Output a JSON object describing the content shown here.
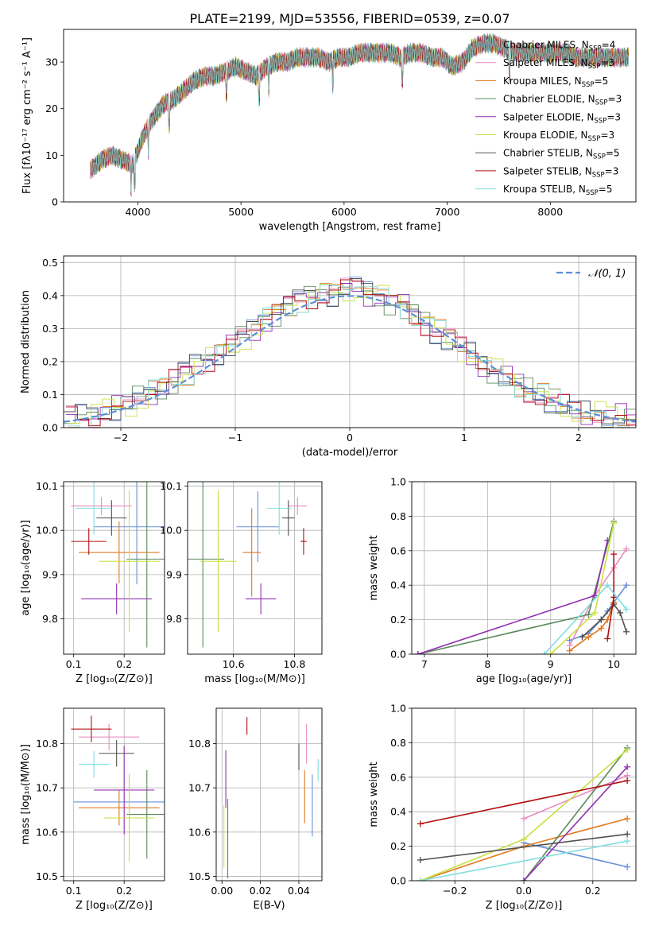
{
  "figure_title": "PLATE=2199, MJD=53556, FIBERID=0539, z=0.07",
  "colors": {
    "chabrier_miles": "#6a8fd8",
    "salpeter_miles": "#e88cc0",
    "kroupa_miles": "#e07a20",
    "chabrier_elodie": "#5a8a5a",
    "salpeter_elodie": "#9030b0",
    "kroupa_elodie": "#c8e040",
    "chabrier_stelib": "#505050",
    "salpeter_stelib": "#b01010",
    "kroupa_stelib": "#80dde0"
  },
  "chart_data": [
    {
      "id": "spectrum",
      "type": "line",
      "title": "PLATE=2199, MJD=53556, FIBERID=0539, z=0.07",
      "xlabel": "wavelength [Angstrom, rest frame]",
      "ylabel": "Flux [fλ10⁻¹⁷ erg cm⁻² s⁻¹ A⁻¹]",
      "xlim": [
        3280,
        8830
      ],
      "ylim": [
        0,
        37
      ],
      "xticks": [
        4000,
        5000,
        6000,
        7000,
        8000
      ],
      "yticks": [
        0,
        10,
        20,
        30
      ],
      "legend_position": "right",
      "x": [
        3550,
        3650,
        3750,
        3850,
        3950,
        4050,
        4150,
        4250,
        4350,
        4450,
        4550,
        4650,
        4750,
        4850,
        4950,
        5050,
        5150,
        5250,
        5350,
        5450,
        5550,
        5650,
        5750,
        5850,
        5950,
        6050,
        6150,
        6250,
        6350,
        6450,
        6550,
        6650,
        6750,
        6850,
        6950,
        7050,
        7150,
        7250,
        7350,
        7450,
        7550,
        7650,
        7750,
        7850,
        7950,
        8050,
        8150,
        8250,
        8350,
        8450,
        8550,
        8650,
        8750
      ],
      "y": [
        7,
        9,
        10,
        9,
        8,
        14,
        18,
        21,
        22,
        24,
        26,
        27,
        27,
        28,
        29,
        28,
        27,
        29,
        30,
        30,
        31,
        31,
        31,
        30,
        31,
        31,
        32,
        32,
        32,
        32,
        31,
        32,
        32,
        31,
        31,
        29,
        30,
        33,
        34,
        34,
        33,
        32,
        32,
        32,
        32,
        32,
        32,
        31,
        31,
        31,
        31,
        31,
        31
      ],
      "series": [
        {
          "name": "Chabrier MILES, N_SSP=4",
          "label_main": "Chabrier MILES, N",
          "label_sub": "SSP",
          "label_end": "=4",
          "color": "#6a8fd8"
        },
        {
          "name": "Salpeter MILES, N_SSP=3",
          "label_main": "Salpeter MILES, N",
          "label_sub": "SSP",
          "label_end": "=3",
          "color": "#e88cc0"
        },
        {
          "name": "Kroupa MILES, N_SSP=5",
          "label_main": "Kroupa MILES, N",
          "label_sub": "SSP",
          "label_end": "=5",
          "color": "#e07a20"
        },
        {
          "name": "Chabrier ELODIE, N_SSP=3",
          "label_main": "Chabrier ELODIE, N",
          "label_sub": "SSP",
          "label_end": "=3",
          "color": "#5a8a5a"
        },
        {
          "name": "Salpeter ELODIE, N_SSP=3",
          "label_main": "Salpeter ELODIE, N",
          "label_sub": "SSP",
          "label_end": "=3",
          "color": "#9030b0"
        },
        {
          "name": "Kroupa ELODIE, N_SSP=3",
          "label_main": "Kroupa ELODIE, N",
          "label_sub": "SSP",
          "label_end": "=3",
          "color": "#c8e040"
        },
        {
          "name": "Chabrier STELIB, N_SSP=5",
          "label_main": "Chabrier STELIB, N",
          "label_sub": "SSP",
          "label_end": "=5",
          "color": "#505050"
        },
        {
          "name": "Salpeter STELIB, N_SSP=3",
          "label_main": "Salpeter STELIB, N",
          "label_sub": "SSP",
          "label_end": "=3",
          "color": "#b01010"
        },
        {
          "name": "Kroupa STELIB, N_SSP=5",
          "label_main": "Kroupa STELIB, N",
          "label_sub": "SSP",
          "label_end": "=5",
          "color": "#80dde0"
        }
      ]
    },
    {
      "id": "residuals",
      "type": "bar",
      "xlabel": "(data-model)/error",
      "ylabel": "Normed distribution",
      "xlim": [
        -2.5,
        2.5
      ],
      "ylim": [
        0,
        0.52
      ],
      "xticks": [
        -2,
        -1,
        0,
        1,
        2
      ],
      "yticks": [
        0.0,
        0.1,
        0.2,
        0.3,
        0.4,
        0.5
      ],
      "grid": true,
      "legend_label": "𝒩(0, 1)",
      "bin_width": 0.1,
      "x": [
        -2.45,
        -2.35,
        -2.25,
        -2.15,
        -2.05,
        -1.95,
        -1.85,
        -1.75,
        -1.65,
        -1.55,
        -1.45,
        -1.35,
        -1.25,
        -1.15,
        -1.05,
        -0.95,
        -0.85,
        -0.75,
        -0.65,
        -0.55,
        -0.45,
        -0.35,
        -0.25,
        -0.15,
        -0.05,
        0.05,
        0.15,
        0.25,
        0.35,
        0.45,
        0.55,
        0.65,
        0.75,
        0.85,
        0.95,
        1.05,
        1.15,
        1.25,
        1.35,
        1.45,
        1.55,
        1.65,
        1.75,
        1.85,
        1.95,
        2.05,
        2.15,
        2.25,
        2.35,
        2.45
      ],
      "y": [
        0.03,
        0.03,
        0.04,
        0.05,
        0.06,
        0.07,
        0.09,
        0.11,
        0.12,
        0.14,
        0.17,
        0.19,
        0.21,
        0.23,
        0.25,
        0.28,
        0.3,
        0.33,
        0.35,
        0.37,
        0.39,
        0.4,
        0.41,
        0.41,
        0.42,
        0.43,
        0.41,
        0.4,
        0.38,
        0.37,
        0.34,
        0.32,
        0.29,
        0.27,
        0.24,
        0.22,
        0.19,
        0.17,
        0.15,
        0.13,
        0.11,
        0.1,
        0.08,
        0.06,
        0.05,
        0.04,
        0.04,
        0.03,
        0.03,
        0.02
      ]
    },
    {
      "id": "age_vs_Z",
      "type": "scatter",
      "xlabel": "Z [log₁₀(Z/Z⊙)]",
      "ylabel": "age  [log₁₀(age/yr)]",
      "xlim": [
        0.08,
        0.28
      ],
      "ylim": [
        9.72,
        10.11
      ],
      "xticks": [
        0.1,
        0.2
      ],
      "yticks": [
        9.8,
        9.9,
        10.0,
        10.1
      ],
      "grid": true,
      "points": [
        {
          "series": "Chabrier MILES",
          "x": 0.225,
          "y": 10.008,
          "xerr": 0.085,
          "yerr": 0.13
        },
        {
          "series": "Salpeter MILES",
          "x": 0.155,
          "y": 10.055,
          "xerr": 0.06,
          "yerr": 0.02
        },
        {
          "series": "Kroupa MILES",
          "x": 0.19,
          "y": 9.95,
          "xerr": 0.08,
          "yerr": 0.07
        },
        {
          "series": "Chabrier ELODIE",
          "x": 0.245,
          "y": 9.935,
          "xerr": 0.04,
          "yerr": 0.2
        },
        {
          "series": "Salpeter ELODIE",
          "x": 0.185,
          "y": 9.845,
          "xerr": 0.07,
          "yerr": 0.035
        },
        {
          "series": "Kroupa ELODIE",
          "x": 0.21,
          "y": 9.93,
          "xerr": 0.06,
          "yerr": 0.16
        },
        {
          "series": "Chabrier STELIB",
          "x": 0.175,
          "y": 10.028,
          "xerr": 0.03,
          "yerr": 0.04
        },
        {
          "series": "Salpeter STELIB",
          "x": 0.13,
          "y": 9.975,
          "xerr": 0.035,
          "yerr": 0.03
        },
        {
          "series": "Kroupa STELIB",
          "x": 0.14,
          "y": 10.05,
          "xerr": 0.035,
          "yerr": 0.06
        }
      ]
    },
    {
      "id": "age_vs_mass",
      "type": "scatter",
      "xlabel": "mass [log₁₀(M/M⊙)]",
      "xlim": [
        10.45,
        10.89
      ],
      "ylim": [
        9.72,
        10.11
      ],
      "xticks": [
        10.6,
        10.8
      ],
      "yticks": [
        9.8,
        9.9,
        10.0,
        10.1
      ],
      "grid": true,
      "points": [
        {
          "series": "Chabrier MILES",
          "x": 10.68,
          "y": 10.008,
          "xerr": 0.07,
          "yerr": 0.08
        },
        {
          "series": "Salpeter MILES",
          "x": 10.81,
          "y": 10.055,
          "xerr": 0.03,
          "yerr": 0.02
        },
        {
          "series": "Kroupa MILES",
          "x": 10.66,
          "y": 9.95,
          "xerr": 0.03,
          "yerr": 0.1
        },
        {
          "series": "Chabrier ELODIE",
          "x": 10.5,
          "y": 9.935,
          "xerr": 0.07,
          "yerr": 0.2
        },
        {
          "series": "Salpeter ELODIE",
          "x": 10.69,
          "y": 9.845,
          "xerr": 0.05,
          "yerr": 0.035
        },
        {
          "series": "Kroupa ELODIE",
          "x": 10.55,
          "y": 9.93,
          "xerr": 0.06,
          "yerr": 0.16
        },
        {
          "series": "Chabrier STELIB",
          "x": 10.78,
          "y": 10.028,
          "xerr": 0.02,
          "yerr": 0.04
        },
        {
          "series": "Salpeter STELIB",
          "x": 10.83,
          "y": 9.975,
          "xerr": 0.01,
          "yerr": 0.03
        },
        {
          "series": "Kroupa STELIB",
          "x": 10.75,
          "y": 10.05,
          "xerr": 0.04,
          "yerr": 0.06
        }
      ]
    },
    {
      "id": "weight_vs_age",
      "type": "line",
      "xlabel": "age  [log₁₀(age/yr)]",
      "ylabel": "mass weight",
      "xlim": [
        6.8,
        10.35
      ],
      "ylim": [
        0,
        1.0
      ],
      "xticks": [
        7,
        8,
        9,
        10
      ],
      "yticks": [
        0.0,
        0.2,
        0.4,
        0.6,
        0.8,
        1.0
      ],
      "grid": true,
      "series": [
        {
          "name": "Chabrier MILES",
          "x": [
            9.3,
            9.6,
            9.8,
            9.9,
            10.0,
            10.2
          ],
          "y": [
            0.08,
            0.12,
            0.2,
            0.25,
            0.3,
            0.4
          ]
        },
        {
          "name": "Salpeter MILES",
          "x": [
            9.3,
            9.7,
            10.0,
            10.2
          ],
          "y": [
            0.05,
            0.34,
            0.5,
            0.61
          ]
        },
        {
          "name": "Kroupa MILES",
          "x": [
            9.3,
            9.6,
            9.8,
            9.9,
            10.0
          ],
          "y": [
            0.02,
            0.1,
            0.15,
            0.2,
            0.3
          ]
        },
        {
          "name": "Chabrier ELODIE",
          "x": [
            6.9,
            9.6,
            10.0
          ],
          "y": [
            0.0,
            0.23,
            0.77
          ]
        },
        {
          "name": "Salpeter ELODIE",
          "x": [
            6.9,
            9.7,
            9.9
          ],
          "y": [
            0.0,
            0.34,
            0.66
          ]
        },
        {
          "name": "Kroupa ELODIE",
          "x": [
            9.0,
            9.7,
            10.0
          ],
          "y": [
            0.0,
            0.24,
            0.76
          ]
        },
        {
          "name": "Chabrier STELIB",
          "x": [
            9.5,
            9.8,
            10.0,
            10.1,
            10.2
          ],
          "y": [
            0.1,
            0.2,
            0.29,
            0.24,
            0.13
          ]
        },
        {
          "name": "Salpeter STELIB",
          "x": [
            9.9,
            10.0,
            10.0
          ],
          "y": [
            0.09,
            0.33,
            0.58
          ]
        },
        {
          "name": "Kroupa STELIB",
          "x": [
            8.9,
            9.9,
            10.2
          ],
          "y": [
            0.0,
            0.4,
            0.26
          ]
        }
      ]
    },
    {
      "id": "mass_vs_Z",
      "type": "scatter",
      "xlabel": "Z [log₁₀(Z/Z⊙)]",
      "ylabel": "mass [log₁₀(M/M⊙)]",
      "xlim": [
        0.08,
        0.28
      ],
      "ylim": [
        10.49,
        10.88
      ],
      "xticks": [
        0.1,
        0.2
      ],
      "yticks": [
        10.5,
        10.6,
        10.7,
        10.8
      ],
      "grid": true,
      "points": [
        {
          "series": "Chabrier MILES",
          "x": 0.21,
          "y": 10.668,
          "xerr": 0.11,
          "yerr": 0.05
        },
        {
          "series": "Salpeter MILES",
          "x": 0.17,
          "y": 10.815,
          "xerr": 0.06,
          "yerr": 0.03
        },
        {
          "series": "Kroupa MILES",
          "x": 0.19,
          "y": 10.655,
          "xerr": 0.08,
          "yerr": 0.04
        },
        {
          "series": "Chabrier ELODIE",
          "x": 0.245,
          "y": 10.64,
          "xerr": 0.04,
          "yerr": 0.1
        },
        {
          "series": "Salpeter ELODIE",
          "x": 0.2,
          "y": 10.695,
          "xerr": 0.06,
          "yerr": 0.1
        },
        {
          "series": "Kroupa ELODIE",
          "x": 0.21,
          "y": 10.632,
          "xerr": 0.05,
          "yerr": 0.1
        },
        {
          "series": "Chabrier STELIB",
          "x": 0.185,
          "y": 10.778,
          "xerr": 0.035,
          "yerr": 0.03
        },
        {
          "series": "Salpeter STELIB",
          "x": 0.135,
          "y": 10.833,
          "xerr": 0.04,
          "yerr": 0.03
        },
        {
          "series": "Kroupa STELIB",
          "x": 0.14,
          "y": 10.753,
          "xerr": 0.03,
          "yerr": 0.03
        }
      ]
    },
    {
      "id": "mass_vs_ebv",
      "type": "scatter",
      "xlabel": "E(B-V)",
      "xlim": [
        -0.003,
        0.052
      ],
      "ylim": [
        10.49,
        10.88
      ],
      "xticks": [
        0.0,
        0.02,
        0.04
      ],
      "yticks": [
        10.5,
        10.6,
        10.7,
        10.8
      ],
      "grid": true,
      "points": [
        {
          "series": "Chabrier MILES",
          "x": 0.047,
          "y": 10.66,
          "xerr": 0,
          "yerr": 0.07
        },
        {
          "series": "Salpeter MILES",
          "x": 0.044,
          "y": 10.8,
          "xerr": 0,
          "yerr": 0.045
        },
        {
          "series": "Kroupa MILES",
          "x": 0.043,
          "y": 10.68,
          "xerr": 0,
          "yerr": 0.06
        },
        {
          "series": "Chabrier ELODIE",
          "x": 0.003,
          "y": 10.585,
          "xerr": 0,
          "yerr": 0.09
        },
        {
          "series": "Salpeter ELODIE",
          "x": 0.002,
          "y": 10.72,
          "xerr": 0,
          "yerr": 0.065
        },
        {
          "series": "Kroupa ELODIE",
          "x": 0.001,
          "y": 10.59,
          "xerr": 0,
          "yerr": 0.07
        },
        {
          "series": "Chabrier STELIB",
          "x": 0.04,
          "y": 10.77,
          "xerr": 0,
          "yerr": 0.03
        },
        {
          "series": "Salpeter STELIB",
          "x": 0.013,
          "y": 10.84,
          "xerr": 0,
          "yerr": 0.02
        },
        {
          "series": "Kroupa STELIB",
          "x": 0.05,
          "y": 10.74,
          "xerr": 0,
          "yerr": 0.025
        }
      ]
    },
    {
      "id": "weight_vs_Z",
      "type": "line",
      "xlabel": "Z [log₁₀(Z/Z⊙)]",
      "ylabel": "mass weight",
      "xlim": [
        -0.325,
        0.325
      ],
      "ylim": [
        0,
        1.0
      ],
      "xticks": [
        -0.2,
        0.0,
        0.2
      ],
      "yticks": [
        0.0,
        0.2,
        0.4,
        0.6,
        0.8,
        1.0
      ],
      "grid": true,
      "series": [
        {
          "name": "Chabrier MILES",
          "x": [
            0.0,
            0.3
          ],
          "y": [
            0.22,
            0.08
          ]
        },
        {
          "name": "Salpeter MILES",
          "x": [
            0.0,
            0.3
          ],
          "y": [
            0.36,
            0.61
          ]
        },
        {
          "name": "Kroupa MILES",
          "x": [
            -0.3,
            0.0,
            0.3
          ],
          "y": [
            0.0,
            0.2,
            0.36
          ]
        },
        {
          "name": "Chabrier ELODIE",
          "x": [
            0.0,
            0.3
          ],
          "y": [
            0.0,
            0.77
          ]
        },
        {
          "name": "Salpeter ELODIE",
          "x": [
            0.0,
            0.3
          ],
          "y": [
            0.0,
            0.66
          ]
        },
        {
          "name": "Kroupa ELODIE",
          "x": [
            -0.3,
            0.0,
            0.3
          ],
          "y": [
            0.0,
            0.24,
            0.76
          ]
        },
        {
          "name": "Chabrier STELIB",
          "x": [
            -0.3,
            0.3
          ],
          "y": [
            0.12,
            0.27
          ]
        },
        {
          "name": "Salpeter STELIB",
          "x": [
            -0.3,
            0.3
          ],
          "y": [
            0.33,
            0.58
          ]
        },
        {
          "name": "Kroupa STELIB",
          "x": [
            -0.3,
            0.3
          ],
          "y": [
            0.0,
            0.23
          ]
        }
      ]
    }
  ]
}
